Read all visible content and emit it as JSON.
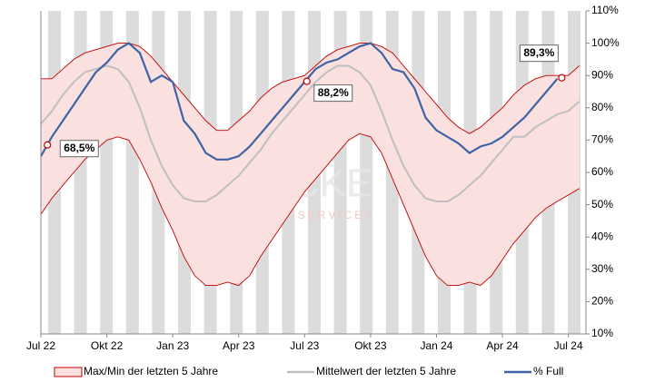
{
  "chart_data": {
    "type": "band-line",
    "watermark": [
      "CKE",
      "SERVICES"
    ],
    "x": [
      0,
      0.5,
      1,
      1.5,
      2,
      2.5,
      3,
      3.5,
      4,
      4.5,
      5,
      5.5,
      6,
      6.5,
      7,
      7.5,
      8,
      8.5,
      9,
      9.5,
      10,
      10.5,
      11,
      11.5,
      12,
      12.5,
      13,
      13.5,
      14,
      14.5,
      15,
      15.5,
      16,
      16.5,
      17,
      17.5,
      18,
      18.5,
      19,
      19.5,
      20,
      20.5,
      21,
      21.5,
      22,
      22.5,
      23,
      23.5,
      24,
      24.5
    ],
    "xlim": [
      0,
      24.8
    ],
    "xticks": [
      {
        "value": 0,
        "label": "Jul 22"
      },
      {
        "value": 3,
        "label": "Okt 22"
      },
      {
        "value": 6,
        "label": "Jan 23"
      },
      {
        "value": 9,
        "label": "Apr 23"
      },
      {
        "value": 12,
        "label": "Jul 23"
      },
      {
        "value": 15,
        "label": "Okt 23"
      },
      {
        "value": 18,
        "label": "Jan 24"
      },
      {
        "value": 21,
        "label": "Apr 24"
      },
      {
        "value": 24,
        "label": "Jul 24"
      }
    ],
    "ylim": [
      10,
      110
    ],
    "yticks": [
      {
        "value": 10,
        "label": "10%"
      },
      {
        "value": 20,
        "label": "20%"
      },
      {
        "value": 30,
        "label": "30%"
      },
      {
        "value": 40,
        "label": "40%"
      },
      {
        "value": 50,
        "label": "50%"
      },
      {
        "value": 60,
        "label": "60%"
      },
      {
        "value": 70,
        "label": "70%"
      },
      {
        "value": 80,
        "label": "80%"
      },
      {
        "value": 90,
        "label": "90%"
      },
      {
        "value": 100,
        "label": "100%"
      },
      {
        "value": 110,
        "label": "110%"
      }
    ],
    "series": [
      {
        "name": "Max/Min der letzten 5 Jahre",
        "color": "#c00000",
        "fill": "#fbe0e0",
        "values": [
          89,
          89,
          92,
          95,
          97,
          98,
          99,
          100,
          100,
          99,
          96,
          92,
          88,
          84,
          80,
          76,
          73,
          73,
          76,
          79,
          83,
          86,
          88,
          89,
          90,
          93,
          96,
          98,
          99,
          100,
          100,
          99,
          97,
          93,
          89,
          85,
          81,
          77,
          74,
          72,
          74,
          77,
          80,
          84,
          87,
          89,
          90,
          90,
          90,
          93
        ],
        "lower": [
          47,
          52,
          56,
          60,
          64,
          67,
          70,
          71,
          70,
          64,
          57,
          49,
          42,
          34,
          28,
          25,
          25,
          26,
          25,
          28,
          34,
          39,
          44,
          49,
          54,
          58,
          62,
          66,
          70,
          72,
          71,
          66,
          58,
          50,
          42,
          34,
          28,
          25,
          25,
          26,
          25,
          28,
          33,
          38,
          42,
          46,
          49,
          51,
          53,
          55
        ]
      },
      {
        "name": "Mittelwert der letzten 5 Jahre",
        "color": "#bfbfbf",
        "values": [
          75,
          79,
          84,
          88,
          91,
          92,
          93,
          92,
          88,
          80,
          70,
          62,
          56,
          52,
          51,
          51,
          53,
          56,
          59,
          63,
          67,
          72,
          76,
          80,
          84,
          88,
          91,
          93,
          93,
          91,
          87,
          79,
          70,
          62,
          56,
          52,
          51,
          51,
          53,
          56,
          59,
          63,
          67,
          71,
          71,
          74,
          76,
          78,
          79,
          82
        ]
      },
      {
        "name": "% Full",
        "color": "#3f64a6",
        "values": [
          65,
          71,
          76,
          81,
          86,
          91,
          94,
          98,
          100,
          97,
          88,
          90,
          88,
          76,
          72,
          66,
          64,
          64,
          65,
          68,
          72,
          76,
          80,
          84,
          88,
          92,
          94,
          95,
          97,
          99,
          100,
          97,
          92,
          91,
          86,
          77,
          73,
          71,
          69,
          66,
          68,
          69,
          71,
          74,
          77,
          81,
          85,
          89,
          null,
          null
        ]
      }
    ],
    "annotations": [
      {
        "x": 0.3,
        "value": 68.5,
        "label": "68,5%"
      },
      {
        "x": 12.1,
        "value": 88.2,
        "label": "88,2%"
      },
      {
        "x": 23.7,
        "value": 89.3,
        "label": "89,3%"
      }
    ]
  }
}
